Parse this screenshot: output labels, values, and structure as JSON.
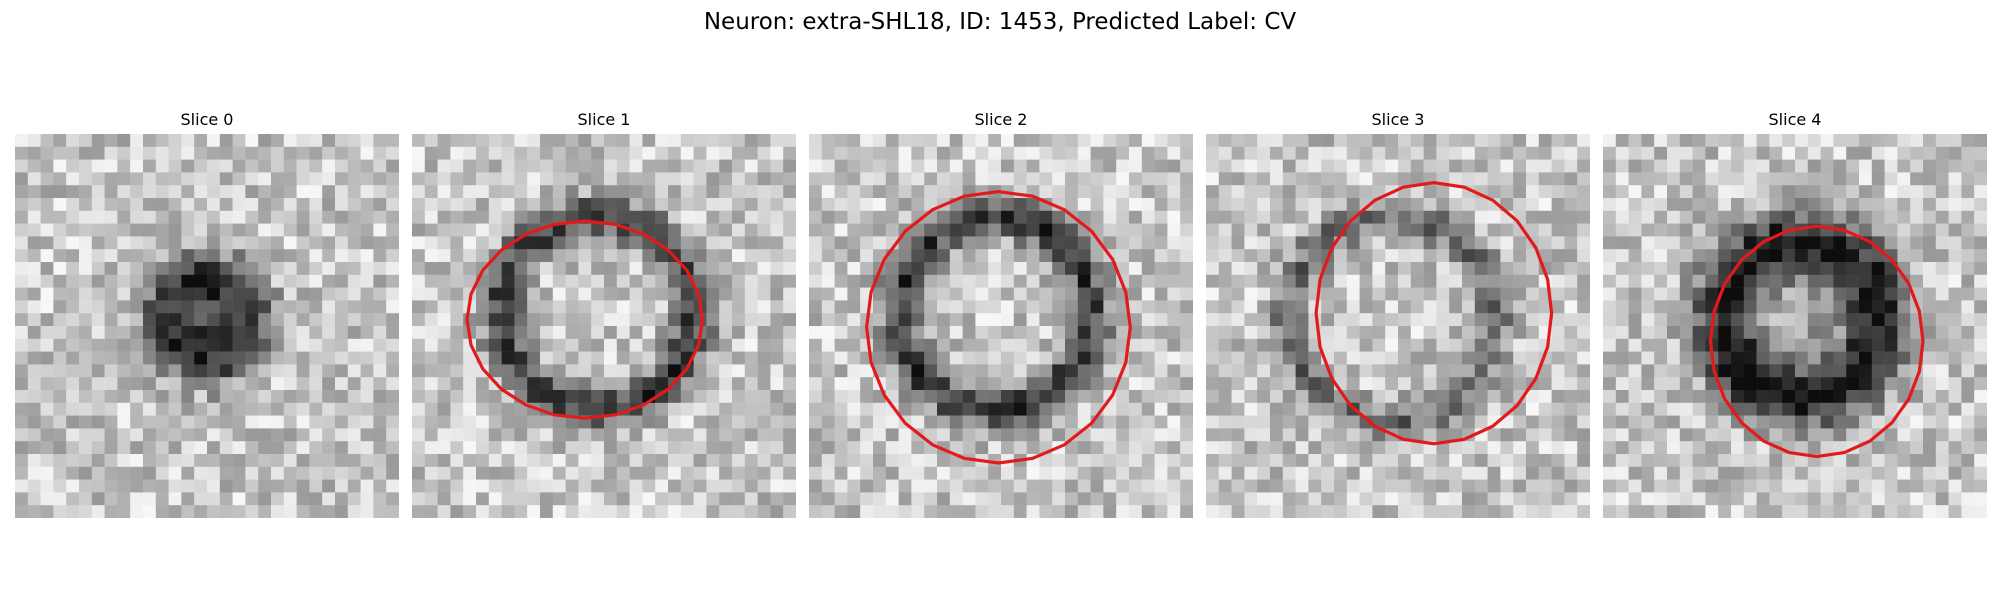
{
  "figure": {
    "title": "Neuron: extra-SHL18, ID: 1453, Predicted Label: CV"
  },
  "contour_color": "#e31a1c",
  "slices": [
    {
      "title": "Slice 0",
      "seed": 11,
      "blob": "star",
      "contour": false
    },
    {
      "title": "Slice 1",
      "seed": 23,
      "blob": "ring",
      "contour": true
    },
    {
      "title": "Slice 2",
      "seed": 37,
      "blob": "ring",
      "contour": true
    },
    {
      "title": "Slice 3",
      "seed": 41,
      "blob": "faint-ring",
      "contour": true
    },
    {
      "title": "Slice 4",
      "seed": 53,
      "blob": "dark-ring",
      "contour": true
    }
  ]
}
